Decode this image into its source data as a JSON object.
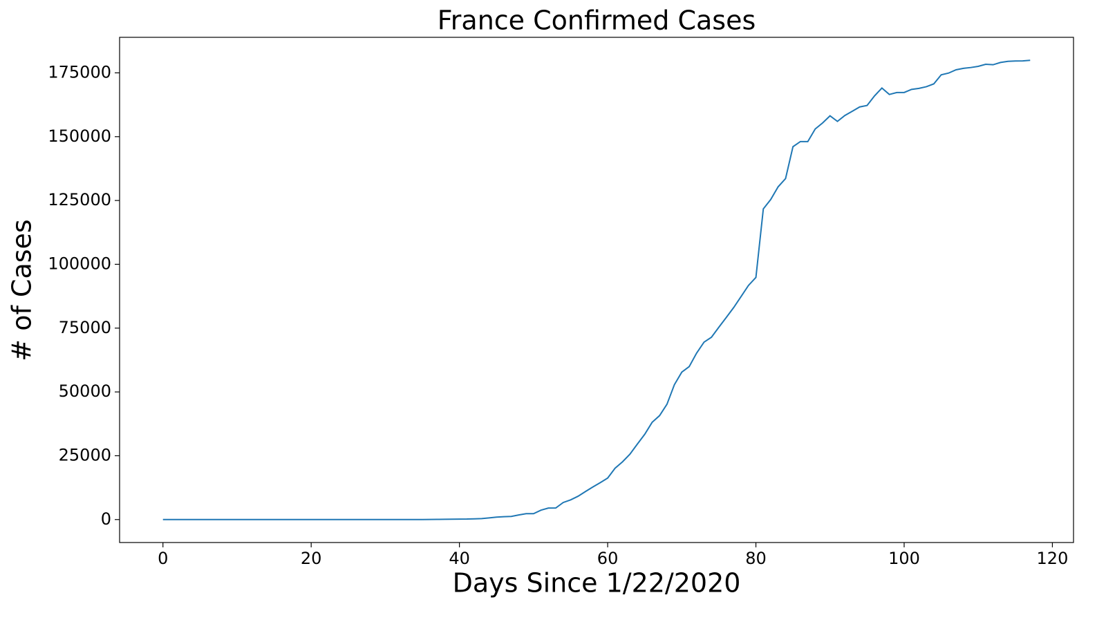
{
  "chart_data": {
    "type": "line",
    "title": "France Confirmed Cases",
    "x_label": "Days Since 1/22/2020",
    "y_label": "# of Cases",
    "x": [
      0,
      1,
      2,
      3,
      4,
      5,
      6,
      7,
      8,
      9,
      10,
      11,
      12,
      13,
      14,
      15,
      16,
      17,
      18,
      19,
      20,
      21,
      22,
      23,
      24,
      25,
      26,
      27,
      28,
      29,
      30,
      31,
      32,
      33,
      34,
      35,
      36,
      37,
      38,
      39,
      40,
      41,
      42,
      43,
      44,
      45,
      46,
      47,
      48,
      49,
      50,
      51,
      52,
      53,
      54,
      55,
      56,
      57,
      58,
      59,
      60,
      61,
      62,
      63,
      64,
      65,
      66,
      67,
      68,
      69,
      70,
      71,
      72,
      73,
      74,
      75,
      76,
      77,
      78,
      79,
      80,
      81,
      82,
      83,
      84,
      85,
      86,
      87,
      88,
      89,
      90,
      91,
      92,
      93,
      94,
      95,
      96,
      97,
      98,
      99,
      100,
      101,
      102,
      103,
      104,
      105,
      106,
      107,
      108,
      109,
      110,
      111,
      112,
      113,
      114,
      115,
      116,
      117
    ],
    "series": [
      {
        "color": "#1f77b4",
        "values": [
          0,
          0,
          2,
          3,
          3,
          3,
          4,
          5,
          5,
          5,
          6,
          6,
          6,
          6,
          6,
          6,
          6,
          11,
          11,
          11,
          11,
          11,
          11,
          11,
          12,
          12,
          12,
          12,
          12,
          12,
          12,
          12,
          12,
          12,
          14,
          18,
          38,
          57,
          100,
          130,
          191,
          204,
          288,
          380,
          656,
          959,
          1136,
          1219,
          1794,
          2293,
          2293,
          3681,
          4496,
          4532,
          6683,
          7715,
          9124,
          10970,
          12758,
          14463,
          16243,
          20123,
          22622,
          25600,
          29551,
          33402,
          38105,
          40708,
          45170,
          52827,
          57749,
          59929,
          65202,
          69500,
          71412,
          75343,
          79163,
          83057,
          87366,
          91738,
          94863,
          121712,
          125394,
          130365,
          133585,
          146075,
          148084,
          148086,
          153011,
          155393,
          158168,
          155980,
          158303,
          159952,
          161644,
          162220,
          165963,
          169053,
          166543,
          167299,
          167305,
          168518,
          168925,
          169583,
          170687,
          174224,
          174918,
          176202,
          176782,
          177094,
          177547,
          178349,
          178184,
          179069,
          179506,
          179645,
          179693,
          179927
        ]
      }
    ],
    "xlim": [
      -5.85,
      122.85
    ],
    "xticks": [
      0,
      20,
      40,
      60,
      80,
      100,
      120
    ],
    "ylim": [
      -8996,
      188923
    ],
    "yticks": [
      0,
      25000,
      50000,
      75000,
      100000,
      125000,
      150000,
      175000
    ],
    "grid": false
  }
}
